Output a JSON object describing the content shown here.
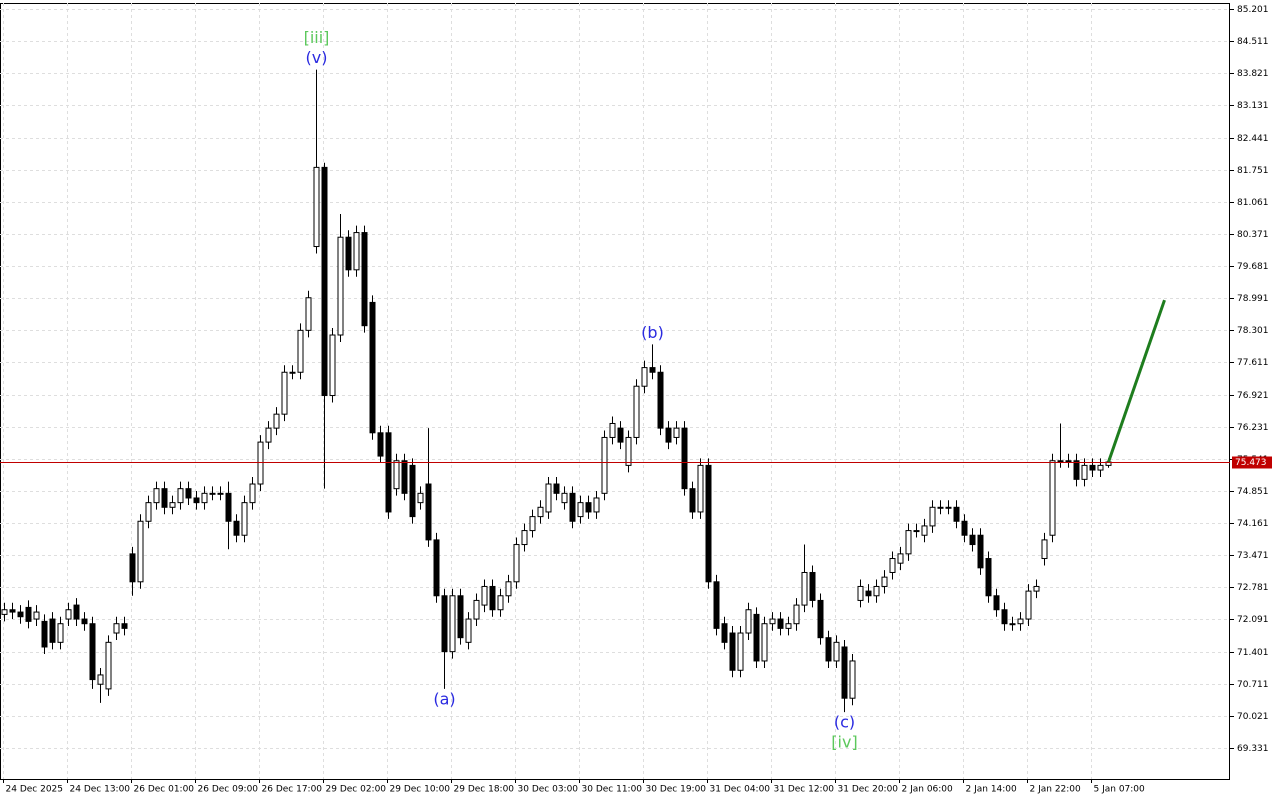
{
  "chart_data": {
    "type": "candlestick",
    "categories": [
      "24 Dec 2025",
      null,
      null,
      null,
      null,
      null,
      null,
      null,
      "24 Dec 13:00",
      null,
      null,
      null,
      null,
      null,
      null,
      null,
      "26 Dec 01:00",
      null,
      null,
      null,
      null,
      null,
      null,
      null,
      "26 Dec 09:00",
      null,
      null,
      null,
      null,
      null,
      null,
      null,
      "26 Dec 17:00",
      null,
      null,
      null,
      null,
      null,
      null,
      null,
      "29 Dec 02:00",
      null,
      null,
      null,
      null,
      null,
      null,
      null,
      "29 Dec 10:00",
      null,
      null,
      null,
      null,
      null,
      null,
      null,
      "29 Dec 18:00",
      null,
      null,
      null,
      null,
      null,
      null,
      null,
      "30 Dec 03:00",
      null,
      null,
      null,
      null,
      null,
      null,
      null,
      "30 Dec 11:00",
      null,
      null,
      null,
      null,
      null,
      null,
      null,
      "30 Dec 19:00",
      null,
      null,
      null,
      null,
      null,
      null,
      null,
      "31 Dec 04:00",
      null,
      null,
      null,
      null,
      null,
      null,
      null,
      "31 Dec 12:00",
      null,
      null,
      null,
      null,
      null,
      null,
      null,
      "31 Dec 20:00",
      null,
      null,
      null,
      null,
      null,
      null,
      null,
      "2 Jan 06:00",
      null,
      null,
      null,
      null,
      null,
      null,
      null,
      "2 Jan 14:00",
      null,
      null,
      null,
      null,
      null,
      null,
      null,
      "2 Jan 22:00",
      null,
      null,
      null,
      null,
      null,
      null,
      null,
      "5 Jan 07:00",
      null,
      null
    ],
    "open": [
      72.2,
      72.3,
      72.25,
      72.35,
      72.1,
      72.05,
      72.1,
      71.6,
      72.1,
      72.4,
      72.1,
      72.0,
      70.7,
      70.6,
      71.8,
      72.0,
      73.5,
      72.9,
      74.2,
      74.6,
      74.9,
      74.5,
      74.6,
      74.9,
      74.7,
      74.6,
      74.8,
      74.8,
      74.8,
      74.2,
      73.9,
      74.6,
      75.0,
      75.9,
      76.2,
      76.5,
      77.4,
      77.4,
      78.3,
      80.1,
      81.8,
      76.9,
      78.2,
      80.3,
      79.6,
      80.4,
      78.9,
      76.1,
      76.1,
      74.9,
      75.5,
      75.4,
      74.6,
      75.0,
      73.8,
      72.6,
      71.4,
      72.6,
      71.6,
      72.1,
      72.4,
      72.8,
      72.3,
      72.6,
      72.9,
      73.7,
      74.0,
      74.3,
      74.4,
      75.0,
      74.6,
      74.8,
      74.3,
      74.6,
      74.4,
      74.8,
      76.0,
      76.2,
      75.4,
      76.0,
      77.1,
      77.5,
      77.4,
      76.2,
      76.0,
      76.2,
      74.9,
      74.4,
      75.4,
      72.9,
      72.0,
      71.8,
      71.0,
      71.8,
      72.2,
      71.2,
      72.0,
      72.1,
      71.9,
      72.0,
      72.4,
      73.1,
      72.5,
      71.7,
      71.2,
      71.5,
      70.4,
      72.5,
      72.7,
      72.6,
      72.8,
      73.1,
      73.3,
      73.5,
      74.0,
      73.9,
      74.1,
      74.5,
      74.5,
      74.5,
      74.2,
      73.9,
      73.9,
      73.4,
      72.6,
      72.3,
      72.0,
      72.0,
      72.1,
      72.7,
      73.4,
      73.9,
      75.5,
      75.5,
      75.5,
      75.1,
      75.4,
      75.3,
      75.4
    ],
    "high": [
      72.45,
      72.45,
      72.4,
      72.5,
      72.4,
      72.2,
      72.25,
      72.15,
      72.45,
      72.55,
      72.25,
      72.15,
      71.05,
      71.75,
      72.15,
      72.15,
      73.65,
      74.35,
      74.75,
      75.05,
      75.05,
      74.75,
      75.05,
      75.05,
      74.85,
      74.95,
      74.95,
      74.95,
      75.05,
      74.35,
      74.75,
      75.15,
      76.05,
      76.35,
      76.65,
      77.55,
      77.55,
      78.45,
      79.15,
      83.9,
      81.9,
      78.35,
      80.8,
      80.45,
      80.55,
      80.55,
      79.05,
      76.25,
      76.25,
      75.65,
      75.65,
      75.55,
      74.95,
      76.2,
      73.95,
      72.75,
      72.75,
      72.75,
      72.25,
      72.65,
      72.95,
      72.95,
      72.75,
      73.05,
      73.85,
      74.15,
      74.45,
      74.65,
      75.15,
      75.15,
      74.95,
      74.95,
      74.75,
      74.75,
      74.85,
      76.15,
      76.45,
      76.35,
      76.15,
      77.25,
      77.65,
      78.0,
      77.55,
      76.35,
      76.35,
      76.35,
      75.05,
      75.55,
      75.55,
      73.05,
      72.15,
      71.95,
      71.95,
      72.45,
      72.35,
      72.15,
      72.25,
      72.25,
      72.15,
      72.55,
      73.7,
      73.25,
      72.65,
      71.85,
      71.75,
      71.65,
      71.35,
      72.95,
      72.85,
      72.95,
      73.15,
      73.55,
      73.65,
      74.15,
      74.15,
      74.25,
      74.65,
      74.65,
      74.65,
      74.65,
      74.35,
      74.05,
      74.05,
      73.55,
      72.75,
      72.45,
      72.15,
      72.25,
      72.85,
      72.95,
      73.95,
      75.65,
      76.3,
      75.65,
      75.65,
      75.55,
      75.55,
      75.55,
      75.55
    ],
    "low": [
      72.05,
      72.1,
      72.0,
      71.9,
      71.95,
      71.35,
      71.45,
      71.45,
      71.95,
      71.95,
      71.85,
      70.6,
      70.3,
      70.45,
      71.65,
      71.75,
      72.6,
      72.75,
      74.05,
      74.45,
      74.35,
      74.35,
      74.45,
      74.55,
      74.45,
      74.45,
      74.65,
      74.65,
      73.6,
      73.75,
      73.75,
      74.45,
      74.85,
      75.75,
      76.05,
      76.35,
      77.25,
      77.25,
      78.15,
      79.95,
      74.9,
      76.75,
      78.05,
      79.45,
      79.45,
      78.25,
      75.95,
      75.45,
      74.25,
      74.75,
      74.65,
      74.15,
      74.45,
      73.65,
      72.45,
      70.6,
      71.25,
      71.55,
      71.45,
      71.95,
      72.25,
      72.15,
      72.15,
      72.45,
      72.75,
      73.55,
      73.85,
      74.15,
      74.25,
      74.65,
      74.45,
      74.05,
      74.15,
      74.25,
      74.25,
      74.65,
      75.85,
      75.75,
      75.25,
      75.85,
      76.95,
      77.25,
      76.05,
      75.75,
      75.85,
      74.75,
      74.25,
      74.25,
      72.75,
      71.75,
      71.45,
      70.85,
      70.85,
      71.65,
      71.05,
      71.05,
      71.85,
      71.75,
      71.75,
      71.85,
      72.25,
      72.35,
      71.55,
      71.05,
      71.05,
      70.1,
      70.25,
      72.35,
      72.45,
      72.45,
      72.65,
      72.95,
      73.15,
      73.35,
      73.85,
      73.75,
      73.95,
      74.35,
      74.35,
      74.05,
      73.75,
      73.55,
      73.05,
      72.45,
      72.15,
      71.85,
      71.85,
      71.85,
      71.95,
      72.55,
      73.25,
      73.75,
      75.35,
      75.35,
      74.95,
      74.95,
      75.15,
      75.15,
      75.35
    ],
    "close": [
      72.3,
      72.25,
      72.15,
      72.05,
      72.25,
      71.5,
      71.6,
      72.0,
      72.3,
      72.1,
      72.0,
      70.8,
      70.9,
      71.6,
      72.0,
      71.9,
      72.9,
      74.2,
      74.6,
      74.9,
      74.5,
      74.6,
      74.9,
      74.7,
      74.6,
      74.8,
      74.8,
      74.8,
      74.2,
      73.9,
      74.6,
      75.0,
      75.9,
      76.2,
      76.5,
      77.4,
      77.4,
      78.3,
      79.0,
      81.8,
      76.9,
      78.2,
      80.3,
      79.6,
      80.4,
      78.4,
      76.1,
      75.6,
      74.4,
      75.5,
      74.8,
      74.3,
      74.8,
      73.8,
      72.6,
      71.4,
      72.6,
      71.7,
      72.1,
      72.5,
      72.8,
      72.3,
      72.6,
      72.9,
      73.7,
      74.0,
      74.3,
      74.5,
      75.0,
      74.8,
      74.8,
      74.2,
      74.6,
      74.4,
      74.7,
      76.0,
      76.3,
      75.9,
      76.0,
      77.1,
      77.5,
      77.4,
      76.2,
      75.9,
      76.2,
      74.9,
      74.4,
      75.4,
      72.9,
      71.9,
      71.6,
      71.0,
      71.8,
      72.3,
      71.2,
      72.0,
      72.1,
      71.9,
      72.0,
      72.4,
      73.1,
      72.5,
      71.7,
      71.2,
      71.6,
      70.4,
      71.2,
      72.8,
      72.6,
      72.8,
      73.0,
      73.4,
      73.5,
      74.0,
      74.0,
      74.1,
      74.5,
      74.5,
      74.5,
      74.2,
      73.9,
      73.7,
      73.2,
      72.6,
      72.3,
      72.0,
      72.0,
      72.1,
      72.7,
      72.8,
      73.8,
      75.5,
      75.5,
      75.5,
      75.1,
      75.4,
      75.3,
      75.4,
      75.473
    ],
    "bull_color": "#ffffff",
    "bear_color": "#000000",
    "ylim": [
      68.665,
      85.33
    ],
    "yticks": [
      85.201,
      84.511,
      83.821,
      83.131,
      82.441,
      81.751,
      81.061,
      80.371,
      79.681,
      78.991,
      78.301,
      77.611,
      76.921,
      76.231,
      75.541,
      74.851,
      74.161,
      73.471,
      72.781,
      72.091,
      71.401,
      70.711,
      70.021,
      69.331
    ],
    "grid": true,
    "current_price": {
      "value": 75.473,
      "color": "#c00000"
    },
    "projection": {
      "color": "#1e7d1e",
      "x": [
        138,
        145
      ],
      "values": [
        75.473,
        78.95
      ]
    },
    "annotations": [
      {
        "text": "(v)",
        "color": "#2a2ae0",
        "at": 39,
        "side": "above"
      },
      {
        "text": "[iii]",
        "color": "#5cc85c",
        "at": 39,
        "side": "above"
      },
      {
        "text": "(a)",
        "color": "#2a2ae0",
        "at": 55,
        "side": "below"
      },
      {
        "text": "(b)",
        "color": "#2a2ae0",
        "at": 81,
        "side": "above"
      },
      {
        "text": "(c)",
        "color": "#2a2ae0",
        "at": 105,
        "side": "below"
      },
      {
        "text": "[iv]",
        "color": "#5cc85c",
        "at": 105,
        "side": "below"
      }
    ]
  }
}
